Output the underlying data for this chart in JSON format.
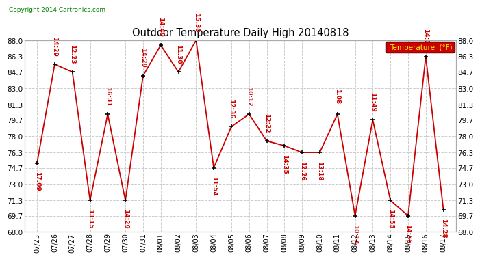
{
  "title": "Outdoor Temperature Daily High 20140818",
  "copyright": "Copyright 2014 Cartronics.com",
  "legend_label": "Temperature  (°F)",
  "dates": [
    "07/25",
    "07/26",
    "07/27",
    "07/28",
    "07/29",
    "07/30",
    "07/31",
    "08/01",
    "08/02",
    "08/03",
    "08/04",
    "08/05",
    "08/06",
    "08/07",
    "08/08",
    "08/09",
    "08/10",
    "08/11",
    "08/12",
    "08/13",
    "08/14",
    "08/15",
    "08/16",
    "08/17"
  ],
  "temperatures": [
    75.2,
    85.5,
    84.7,
    71.3,
    80.3,
    71.3,
    84.3,
    87.5,
    84.7,
    88.0,
    74.7,
    79.0,
    80.3,
    77.5,
    77.0,
    76.3,
    76.3,
    80.3,
    69.7,
    79.7,
    71.3,
    69.7,
    86.3,
    70.3
  ],
  "time_labels": [
    "17:09",
    "14:29",
    "12:23",
    "13:15",
    "16:31",
    "14:29",
    "14:29",
    "14:49",
    "11:30",
    "15:30",
    "11:54",
    "12:36",
    "10:12",
    "12:22",
    "14:35",
    "12:26",
    "13:18",
    "1:08",
    "10:14",
    "11:49",
    "14:55",
    "14:55",
    "14:15",
    "14:28"
  ],
  "label_above": [
    false,
    true,
    true,
    false,
    true,
    false,
    true,
    true,
    true,
    true,
    false,
    true,
    true,
    true,
    false,
    false,
    false,
    true,
    false,
    true,
    false,
    false,
    true,
    false
  ],
  "ylim": [
    68.0,
    88.0
  ],
  "yticks": [
    68.0,
    69.7,
    71.3,
    73.0,
    74.7,
    76.3,
    78.0,
    79.7,
    81.3,
    83.0,
    84.7,
    86.3,
    88.0
  ],
  "line_color": "#cc0000",
  "marker_color": "#000000",
  "bg_color": "#ffffff",
  "grid_color": "#cccccc",
  "title_color": "#000000",
  "label_color": "#cc0000",
  "legend_bg": "#cc0000",
  "legend_fg": "#ffff00"
}
